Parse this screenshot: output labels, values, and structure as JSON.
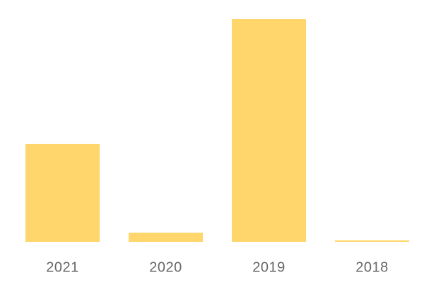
{
  "chart_data": {
    "type": "bar",
    "categories": [
      "2021",
      "2020",
      "2019",
      "2018"
    ],
    "values": [
      139,
      13,
      316,
      2
    ],
    "color": "#ffd66b"
  }
}
